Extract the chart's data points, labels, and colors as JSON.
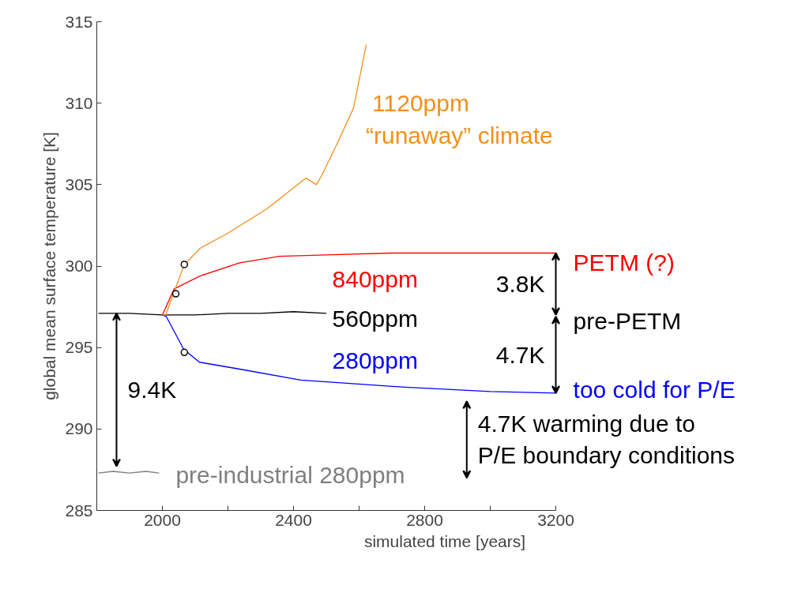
{
  "chart_data": {
    "type": "line",
    "xlabel": "simulated time [years]",
    "ylabel": "global mean surface temperature [K]",
    "xlim": [
      1800,
      3200
    ],
    "ylim": [
      285,
      315
    ],
    "xticks": [
      {
        "value": 1800,
        "label": null
      },
      2000,
      {
        "value": 2200,
        "label": null
      },
      2400,
      {
        "value": 2600,
        "label": null
      },
      2800,
      {
        "value": 3000,
        "label": null
      },
      3200
    ],
    "yticks": [
      285,
      290,
      295,
      300,
      305,
      310,
      315
    ],
    "grid": false,
    "line_style": "solid",
    "series": [
      {
        "color": "#7f7f7f",
        "x": [
          1805,
          1850,
          1900,
          1950,
          1990
        ],
        "values": [
          287.3,
          287.4,
          287.3,
          287.4,
          287.3
        ]
      },
      {
        "color": "#000000",
        "x": [
          1805,
          1900,
          2000,
          2100,
          2200,
          2300,
          2400,
          2500
        ],
        "values": [
          297.1,
          297.1,
          297.0,
          297.0,
          297.1,
          297.1,
          297.2,
          297.1
        ]
      },
      {
        "color": "#ff0000",
        "x": [
          2000,
          2036,
          2116,
          2236,
          2357,
          2518,
          2700,
          2900,
          3100,
          3200
        ],
        "values": [
          297.0,
          298.6,
          299.4,
          300.2,
          300.6,
          300.7,
          300.8,
          300.8,
          300.8,
          300.8
        ]
      },
      {
        "color": "#0000ff",
        "x": [
          2000,
          2012,
          2065,
          2113,
          2229,
          2422,
          2711,
          3000,
          3200
        ],
        "values": [
          297.0,
          296.9,
          294.9,
          294.1,
          293.7,
          293.0,
          292.6,
          292.3,
          292.2
        ]
      },
      {
        "color": "#f39019",
        "x": [
          2000,
          2010,
          2067,
          2116,
          2198,
          2318,
          2438,
          2470,
          2487,
          2535,
          2583,
          2622
        ],
        "values": [
          297.0,
          297.0,
          300.1,
          301.1,
          302.0,
          303.5,
          305.4,
          305.0,
          305.6,
          307.6,
          309.7,
          313.6
        ]
      },
      {
        "type": "scatter",
        "marker": "circle",
        "color": "#000000",
        "x": [
          2067,
          2041,
          2067
        ],
        "values": [
          300.1,
          298.3,
          294.7
        ]
      }
    ],
    "annotations": [
      "1120ppm",
      "“runaway” climate",
      "840ppm",
      "560ppm",
      "280ppm",
      "pre-industrial 280ppm",
      "PETM (?)",
      "pre-PETM",
      "too cold for P/E",
      "9.4K",
      {
        "text": "3.8K",
        "x": 3200,
        "y": 300.8
      },
      {
        "text": "4.7K",
        "x": 3200,
        "y": 292.2
      },
      "4.7K warming due to\nP/E boundary conditions"
    ]
  }
}
